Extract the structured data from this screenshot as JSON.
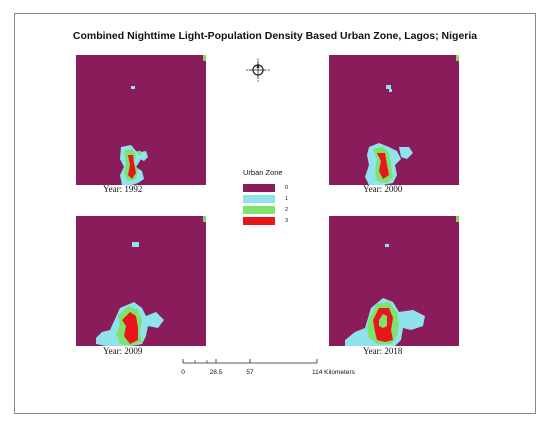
{
  "title": "Combined Nighttime Light-Population Density Based Urban Zone, Lagos; Nigeria",
  "colors": {
    "zone0": "#8b1c5c",
    "zone1": "#8fe3ec",
    "zone2": "#7de36a",
    "zone3": "#e8151b",
    "corner": "#7fd866"
  },
  "maps": [
    {
      "year_label": "Year: 1992"
    },
    {
      "year_label": "Year: 2000"
    },
    {
      "year_label": "Year: 2009"
    },
    {
      "year_label": "Year: 2018"
    }
  ],
  "legend": {
    "title": "Urban Zone",
    "items": [
      {
        "label": "0",
        "color": "#8b1c5c"
      },
      {
        "label": "1",
        "color": "#8fe3ec"
      },
      {
        "label": "2",
        "color": "#7de36a"
      },
      {
        "label": "3",
        "color": "#e8151b"
      }
    ]
  },
  "north_arrow": {
    "icon": "north-arrow-icon",
    "n": "N",
    "s": "S",
    "e": "E",
    "w": "W"
  },
  "scale": {
    "ticks": [
      "0",
      "28.5",
      "57",
      "114 Kilometers"
    ]
  }
}
